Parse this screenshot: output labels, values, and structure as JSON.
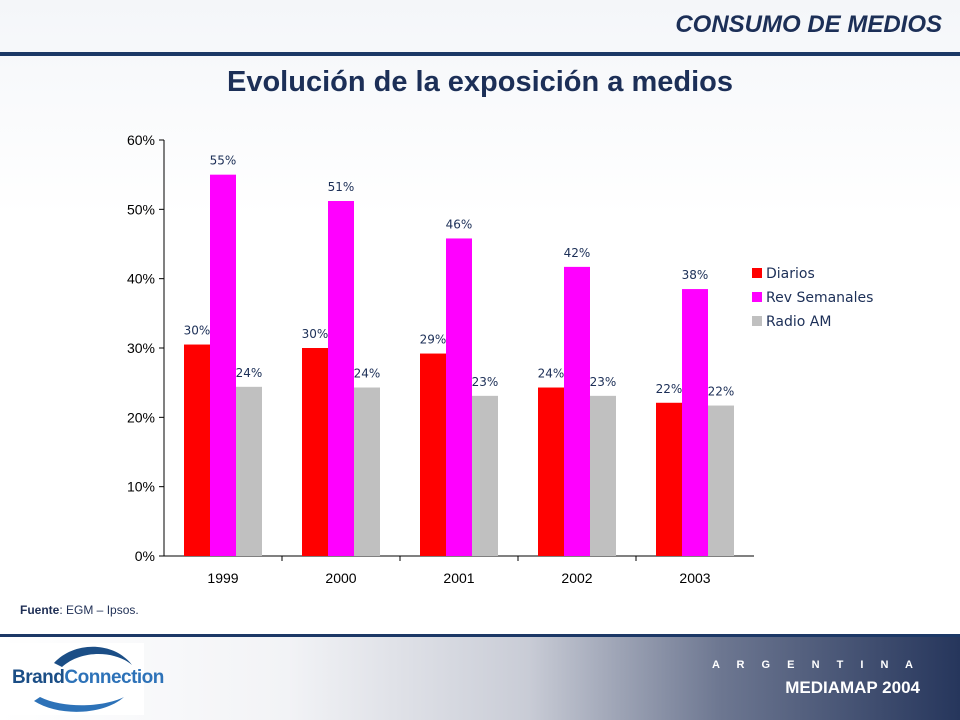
{
  "header": {
    "section_title": "CONSUMO DE MEDIOS"
  },
  "main_title": "Evolución de la exposición a medios",
  "source": {
    "label": "Fuente",
    "text": ": EGM – Ipsos."
  },
  "footer": {
    "logo_part1": "Brand",
    "logo_part2": "Connection",
    "country": "A R G E N T I N A",
    "brand": "MEDIAMAP 2004"
  },
  "colors": {
    "header_text": "#1c2f57",
    "accent_bar": "#1c3866",
    "diarios": "#ff0000",
    "rev_semanales": "#ff00ff",
    "radio_am": "#c0c0c0"
  },
  "chart_data": {
    "type": "bar",
    "title": "",
    "xlabel": "",
    "ylabel": "",
    "categories": [
      "1999",
      "2000",
      "2001",
      "2002",
      "2003"
    ],
    "series": [
      {
        "name": "Diarios",
        "values": [
          30.5,
          30.0,
          29.2,
          24.3,
          22.1
        ],
        "labels": [
          "30%",
          "30%",
          "29%",
          "24%",
          "22%"
        ],
        "color": "#ff0000"
      },
      {
        "name": "Rev Semanales",
        "values": [
          55.0,
          51.2,
          45.8,
          41.7,
          38.5
        ],
        "labels": [
          "55%",
          "51%",
          "46%",
          "42%",
          "38%"
        ],
        "color": "#ff00ff"
      },
      {
        "name": "Radio AM",
        "values": [
          24.4,
          24.3,
          23.1,
          23.1,
          21.7
        ],
        "labels": [
          "24%",
          "24%",
          "23%",
          "23%",
          "22%"
        ],
        "color": "#c0c0c0"
      }
    ],
    "ylim": [
      0,
      60
    ],
    "yticks": [
      "0%",
      "10%",
      "20%",
      "30%",
      "40%",
      "50%",
      "60%"
    ],
    "grid": false,
    "legend_position": "right"
  }
}
